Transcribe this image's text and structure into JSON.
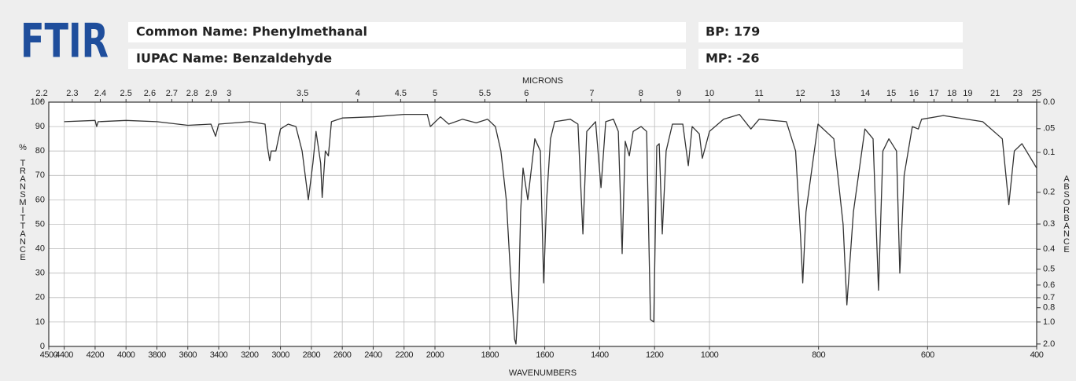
{
  "header": {
    "logo": "FTIR",
    "common_name": "Common Name: Phenylmethanal",
    "iupac_name": "IUPAC Name: Benzaldehyde",
    "bp": "BP: 179",
    "mp": "MP: -26"
  },
  "chart_data": {
    "type": "line",
    "xlabel": "WAVENUMBERS",
    "x2label": "MICRONS",
    "ylabel": "% TRANSMITTANCE",
    "y2label": "ABSORBANCE",
    "xlim": [
      4500,
      400
    ],
    "xbreaks": [
      4500,
      2000,
      1000,
      400
    ],
    "xticks": [
      4500,
      4400,
      4200,
      4000,
      3800,
      3600,
      3400,
      3200,
      3000,
      2800,
      2600,
      2400,
      2200,
      2000,
      1800,
      1600,
      1400,
      1200,
      1000,
      800,
      600,
      400
    ],
    "x2ticks": [
      2.2,
      2.3,
      2.4,
      2.5,
      2.6,
      2.7,
      2.8,
      2.9,
      3,
      3.5,
      4,
      4.5,
      5,
      5.5,
      6,
      7,
      8,
      9,
      10,
      11,
      12,
      13,
      14,
      15,
      16,
      17,
      18,
      19,
      21,
      23,
      25
    ],
    "ylim": [
      0,
      100
    ],
    "yticks": [
      0,
      10,
      20,
      30,
      40,
      50,
      60,
      70,
      80,
      90,
      100
    ],
    "y2ticks": [
      {
        "value": 0,
        "label": "0.0"
      },
      {
        "value": 0.05,
        "label": ".05"
      },
      0.1,
      0.2,
      0.3,
      0.4,
      0.5,
      0.6,
      0.7,
      0.8,
      {
        "value": 1,
        "label": "1.0"
      },
      {
        "value": 2,
        "label": "2.0"
      }
    ],
    "grid": true,
    "x": [
      4400,
      4200,
      4190,
      4180,
      4000,
      3800,
      3600,
      3450,
      3420,
      3400,
      3200,
      3100,
      3085,
      3070,
      3060,
      3030,
      3000,
      2950,
      2900,
      2860,
      2820,
      2790,
      2770,
      2740,
      2730,
      2710,
      2690,
      2670,
      2600,
      2400,
      2200,
      2050,
      2030,
      1980,
      1950,
      1900,
      1850,
      1808,
      1780,
      1760,
      1740,
      1725,
      1710,
      1705,
      1695,
      1688,
      1679,
      1662,
      1636,
      1616,
      1604,
      1593,
      1579,
      1564,
      1507,
      1479,
      1461,
      1447,
      1415,
      1395,
      1378,
      1350,
      1332,
      1318,
      1307,
      1292,
      1278,
      1249,
      1229,
      1215,
      1203,
      1192,
      1183,
      1172,
      1158,
      1135,
      1097,
      1077,
      1063,
      1037,
      1026,
      1014,
      1000,
      974,
      945,
      924,
      909,
      859,
      842,
      833,
      829,
      823,
      801,
      772,
      755,
      748,
      736,
      715,
      700,
      690,
      682,
      671,
      657,
      651,
      643,
      628,
      617,
      611,
      571,
      499,
      463,
      451,
      441,
      427,
      400
    ],
    "series": [
      {
        "color": "#333333",
        "values": [
          92,
          92.5,
          90,
          92,
          92.5,
          92,
          90.5,
          91,
          86,
          91,
          92,
          91,
          82,
          76,
          80,
          80,
          89,
          91,
          90,
          80,
          60,
          75,
          88,
          75,
          61,
          80,
          78,
          92,
          93.5,
          94,
          95,
          95,
          90,
          94,
          91,
          93,
          91.5,
          93,
          90,
          80,
          60,
          30,
          3,
          1,
          20,
          55,
          73,
          60,
          85,
          80,
          26,
          60,
          85,
          92,
          93,
          91,
          46,
          88,
          92,
          65,
          92,
          93,
          88,
          38,
          84,
          78,
          88,
          90,
          88,
          11,
          10,
          82,
          83,
          46,
          80,
          91,
          91,
          74,
          90,
          87,
          77,
          82,
          88,
          93,
          95,
          89,
          93,
          92,
          80,
          45,
          26,
          55,
          91,
          85,
          50,
          17,
          55,
          89,
          85,
          23,
          80,
          85,
          80,
          30,
          70,
          90,
          89,
          93,
          94.5,
          92,
          85,
          58,
          80,
          83,
          73
        ]
      }
    ]
  }
}
